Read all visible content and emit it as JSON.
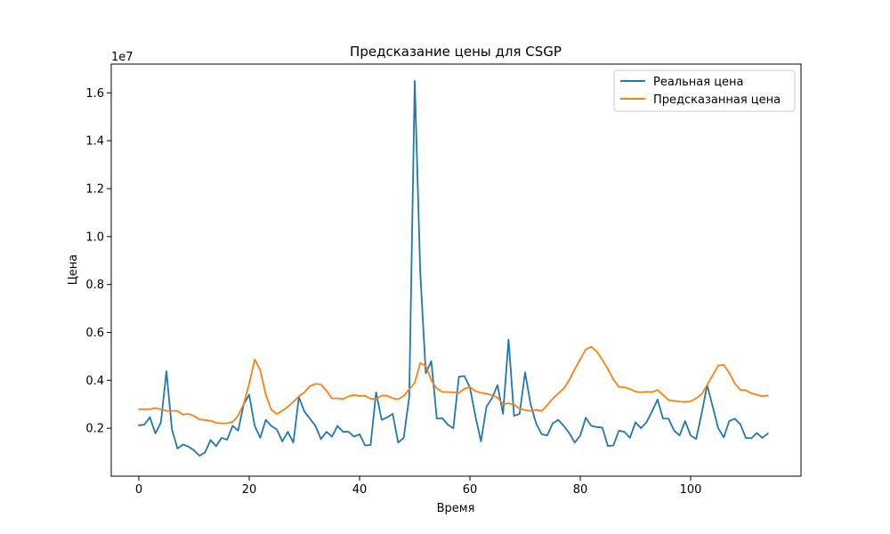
{
  "chart_data": {
    "type": "line",
    "title": "Предсказание цены для CSGP",
    "xlabel": "Время",
    "ylabel": "Цена",
    "y_offset_label": "1e7",
    "xlim": [
      -5,
      120
    ],
    "ylim": [
      0,
      17200000
    ],
    "x_ticks": [
      0,
      20,
      40,
      60,
      80,
      100
    ],
    "y_ticks": [
      2000000,
      4000000,
      6000000,
      8000000,
      10000000,
      12000000,
      14000000,
      16000000
    ],
    "y_tick_labels": [
      "0.2",
      "0.4",
      "0.6",
      "0.8",
      "1.0",
      "1.2",
      "1.4",
      "1.6"
    ],
    "legend": "top-right",
    "grid": false,
    "series": [
      {
        "name": "Реальная цена",
        "color": "#1f77b4",
        "values": [
          2120000,
          2150000,
          2460000,
          1780000,
          2250000,
          4380000,
          1950000,
          1150000,
          1320000,
          1230000,
          1080000,
          850000,
          990000,
          1510000,
          1250000,
          1600000,
          1520000,
          2100000,
          1900000,
          3000000,
          3400000,
          2100000,
          1600000,
          2350000,
          2100000,
          1950000,
          1450000,
          1850000,
          1400000,
          3300000,
          2700000,
          2400000,
          2100000,
          1550000,
          1850000,
          1650000,
          2100000,
          1850000,
          1850000,
          1650000,
          1750000,
          1280000,
          1300000,
          3500000,
          2350000,
          2450000,
          2600000,
          1400000,
          1600000,
          3300000,
          16500000,
          8500000,
          4300000,
          4800000,
          2400000,
          2420000,
          2150000,
          2000000,
          4150000,
          4180000,
          3700000,
          2500000,
          1450000,
          2900000,
          3250000,
          3800000,
          2600000,
          5700000,
          2520000,
          2600000,
          4330000,
          3000000,
          2200000,
          1750000,
          1700000,
          2200000,
          2350000,
          2100000,
          1800000,
          1400000,
          1700000,
          2440000,
          2100000,
          2050000,
          2030000,
          1260000,
          1280000,
          1900000,
          1850000,
          1600000,
          2250000,
          2000000,
          2250000,
          2700000,
          3200000,
          2400000,
          2400000,
          1900000,
          1700000,
          2300000,
          1700000,
          1550000,
          2620000,
          3800000,
          2900000,
          2000000,
          1620000,
          2300000,
          2400000,
          2170000,
          1600000,
          1580000,
          1800000,
          1600000,
          1780000
        ]
      },
      {
        "name": "Предсказанная цена",
        "color": "#ff7f0e",
        "values": [
          2790000,
          2800000,
          2790000,
          2840000,
          2790000,
          2720000,
          2730000,
          2720000,
          2570000,
          2600000,
          2510000,
          2370000,
          2340000,
          2310000,
          2230000,
          2200000,
          2210000,
          2260000,
          2530000,
          3010000,
          3870000,
          4870000,
          4430000,
          3400000,
          2780000,
          2590000,
          2730000,
          2900000,
          3100000,
          3330000,
          3500000,
          3760000,
          3850000,
          3830000,
          3570000,
          3240000,
          3250000,
          3220000,
          3330000,
          3390000,
          3350000,
          3360000,
          3230000,
          3230000,
          3360000,
          3360000,
          3250000,
          3210000,
          3350000,
          3620000,
          3900000,
          4720000,
          4600000,
          4000000,
          3660000,
          3520000,
          3510000,
          3500000,
          3470000,
          3650000,
          3720000,
          3550000,
          3480000,
          3440000,
          3380000,
          3280000,
          3000000,
          3040000,
          2980000,
          2820000,
          2760000,
          2720000,
          2770000,
          2720000,
          2960000,
          3230000,
          3450000,
          3660000,
          4010000,
          4470000,
          4880000,
          5290000,
          5400000,
          5200000,
          4850000,
          4480000,
          4040000,
          3720000,
          3710000,
          3640000,
          3530000,
          3500000,
          3520000,
          3510000,
          3600000,
          3390000,
          3180000,
          3140000,
          3110000,
          3100000,
          3120000,
          3250000,
          3420000,
          3810000,
          4210000,
          4620000,
          4650000,
          4310000,
          3870000,
          3600000,
          3590000,
          3460000,
          3400000,
          3330000,
          3370000
        ]
      }
    ]
  }
}
